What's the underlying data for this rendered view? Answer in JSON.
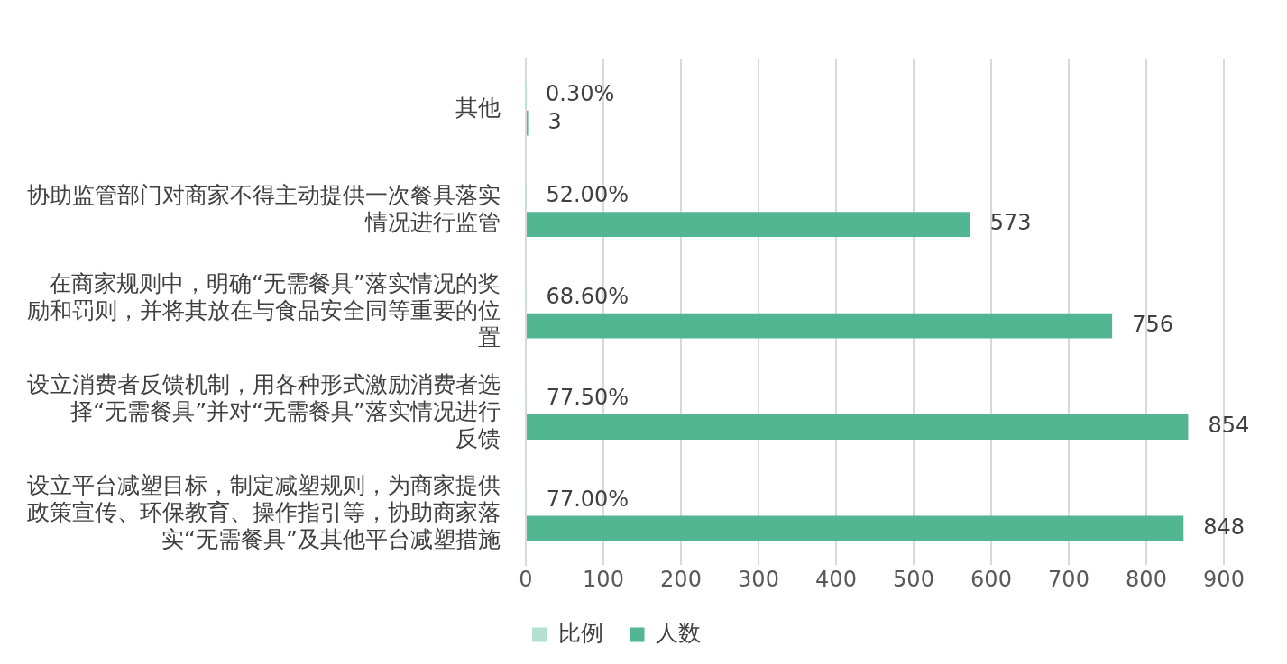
{
  "chart_data": {
    "type": "bar",
    "orientation": "horizontal",
    "categories": [
      "其他",
      "协助监管部门对商家不得主动提供一次餐具落实情况进行监管",
      "在商家规则中，明确“无需餐具”落实情况的奖励和罚则，并将其放在与食品安全同等重要的位置",
      "设立消费者反馈机制，用各种形式激励消费者选择“无需餐具”并对“无需餐具”落实情况进行反馈",
      "设立平台减塑目标，制定减塑规则，为商家提供政策宣传、环保教育、操作指引等，协助商家落实“无需餐具”及其他平台减塑措施"
    ],
    "series": [
      {
        "name": "比例",
        "color": "#b3e0d0",
        "values": [
          0.003,
          0.52,
          0.686,
          0.775,
          0.77
        ],
        "value_labels": [
          "0.30%",
          "52.00%",
          "68.60%",
          "77.50%",
          "77.00%"
        ]
      },
      {
        "name": "人数",
        "color": "#52b693",
        "values": [
          3,
          573,
          756,
          854,
          848
        ],
        "value_labels": [
          "3",
          "573",
          "756",
          "854",
          "848"
        ]
      }
    ],
    "xlim": [
      0,
      900
    ],
    "xticks": [
      0,
      100,
      200,
      300,
      400,
      500,
      600,
      700,
      800,
      900
    ],
    "grid": "x",
    "legend": "bottom"
  }
}
